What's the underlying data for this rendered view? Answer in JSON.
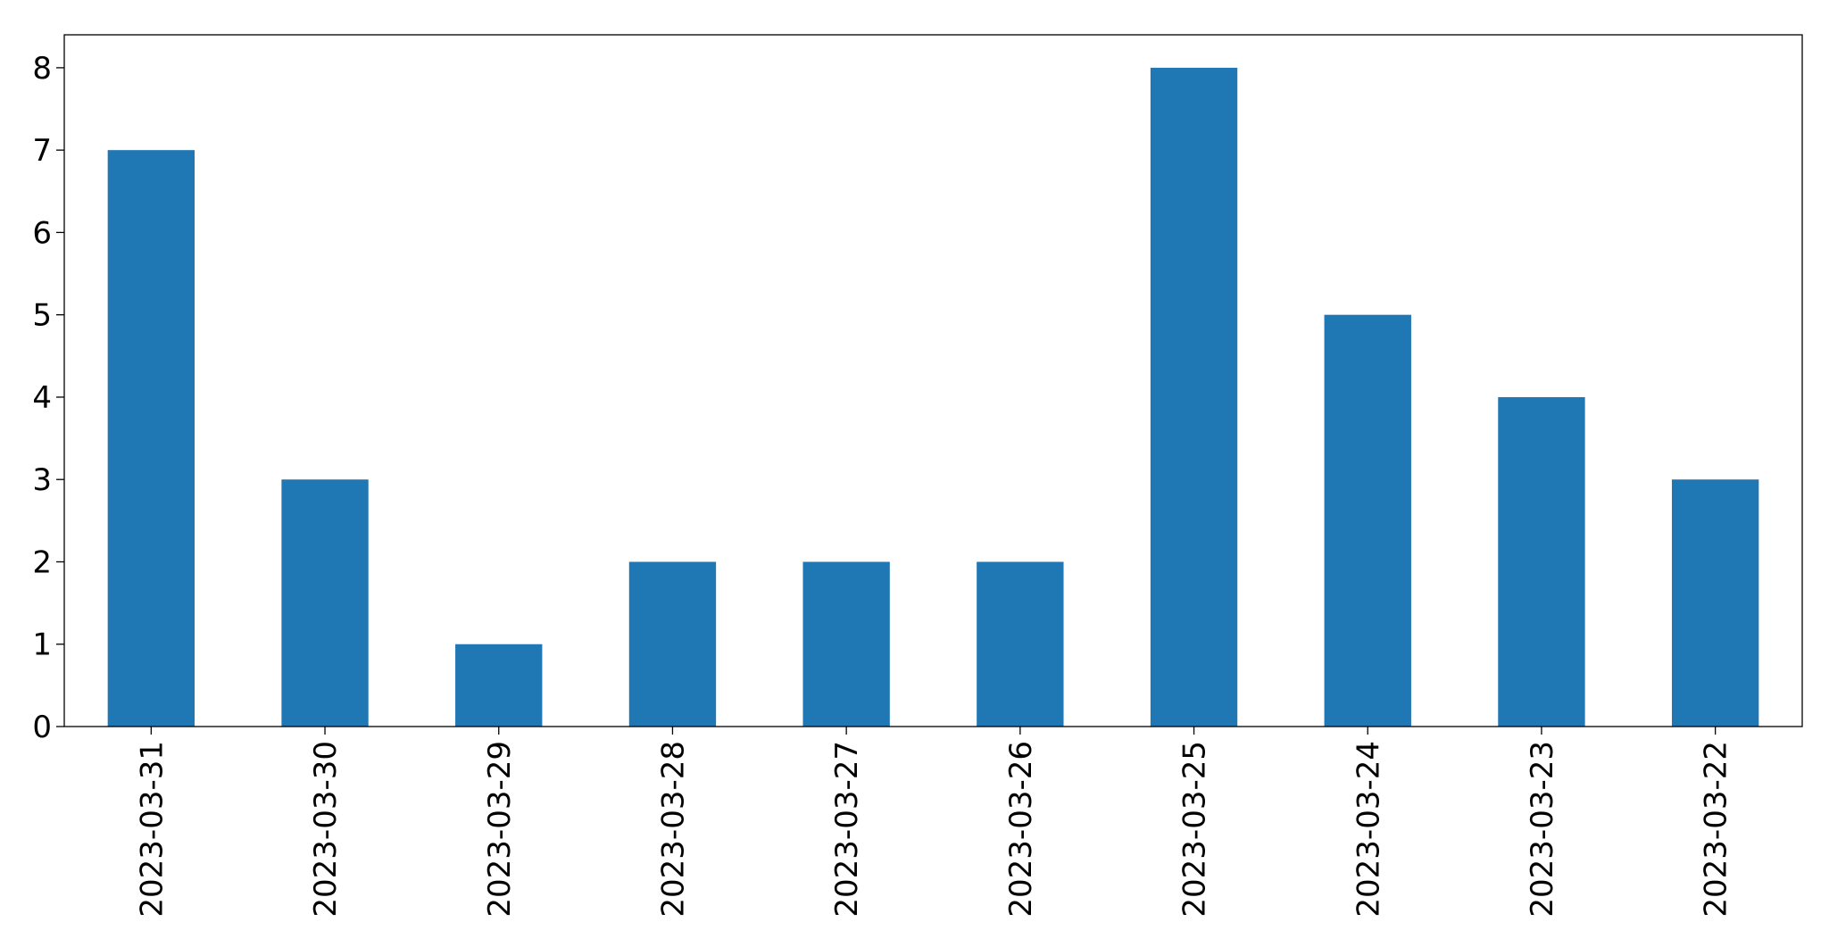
{
  "chart_data": {
    "type": "bar",
    "categories": [
      "2023-03-31",
      "2023-03-30",
      "2023-03-29",
      "2023-03-28",
      "2023-03-27",
      "2023-03-26",
      "2023-03-25",
      "2023-03-24",
      "2023-03-23",
      "2023-03-22"
    ],
    "values": [
      7,
      3,
      1,
      2,
      2,
      2,
      8,
      5,
      4,
      3
    ],
    "color": "#1f77b4",
    "ylim": [
      0,
      8.4
    ],
    "yticks": [
      0,
      1,
      2,
      3,
      4,
      5,
      6,
      7,
      8
    ],
    "grid": false
  }
}
